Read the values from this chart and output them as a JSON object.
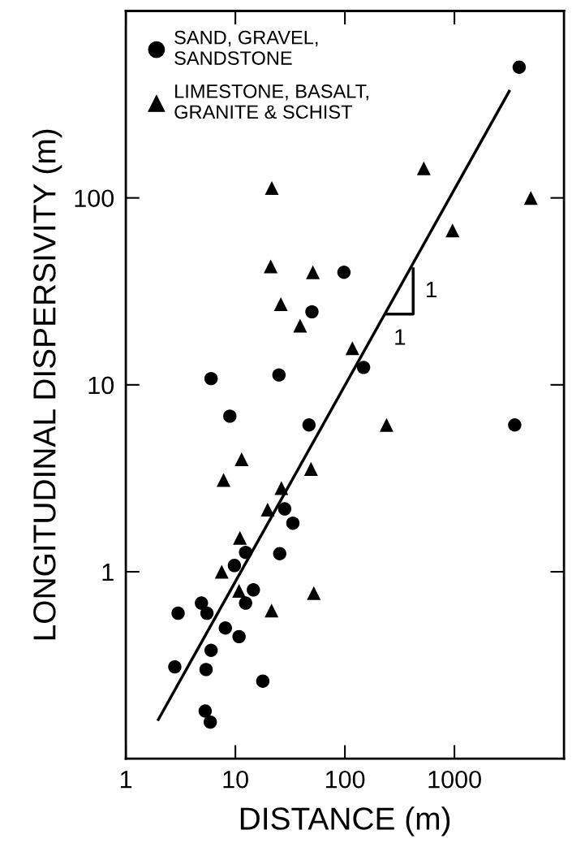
{
  "chart_data": {
    "type": "scatter",
    "xlabel": "DISTANCE (m)",
    "ylabel": "LONGITUDINAL DISPERSIVITY (m)",
    "log": "xy",
    "xlim": [
      1,
      10000
    ],
    "ylim": [
      0.1,
      1000
    ],
    "xticks": [
      1,
      10,
      100,
      1000
    ],
    "yticks": [
      1,
      10,
      100
    ],
    "grid": false,
    "legend": "top left",
    "series": [
      {
        "name": "SAND, GRAVEL,\nSANDSTONE",
        "marker": "circle",
        "color": "#000000",
        "x": [
          3900,
          98,
          50,
          148,
          6.0,
          25,
          8.9,
          47,
          3550,
          28.2,
          33.5,
          12.4,
          25.4,
          9.8,
          14.6,
          12.4,
          4.9,
          5.5,
          3.0,
          8.1,
          10.8,
          6.0,
          2.8,
          5.4,
          17.8,
          5.3,
          5.9
        ],
        "values": [
          500,
          40,
          24.6,
          12.4,
          10.8,
          11.3,
          6.8,
          6.1,
          6.1,
          2.17,
          1.82,
          1.27,
          1.25,
          1.08,
          0.8,
          0.68,
          0.68,
          0.6,
          0.6,
          0.5,
          0.45,
          0.38,
          0.31,
          0.3,
          0.26,
          0.18,
          0.157
        ]
      },
      {
        "name": "LIMESTONE, BASALT,\nGRANITE & SCHIST",
        "marker": "triangle",
        "color": "#000000",
        "x": [
          525,
          21.5,
          4980,
          960,
          21,
          51,
          26,
          39,
          117,
          240,
          11.4,
          49,
          7.8,
          26.3,
          19.7,
          11,
          7.5,
          10.8,
          52,
          21.4
        ],
        "values": [
          144,
          113,
          100,
          67,
          43,
          40,
          27,
          20.7,
          15.7,
          6.1,
          4.0,
          3.55,
          3.1,
          2.8,
          2.15,
          1.52,
          1.0,
          0.79,
          0.77,
          0.62
        ]
      },
      {
        "type": "line",
        "marker": "none",
        "color": "#000000",
        "x": [
          1.98,
          3160
        ],
        "values": [
          0.162,
          372
        ]
      },
      {
        "type": "line",
        "marker": "none",
        "color": "#000000",
        "x": [
          240,
          420,
          420
        ],
        "values": [
          23.9,
          23.9,
          41.7
        ]
      }
    ],
    "annotations": [
      "1",
      "1"
    ]
  }
}
